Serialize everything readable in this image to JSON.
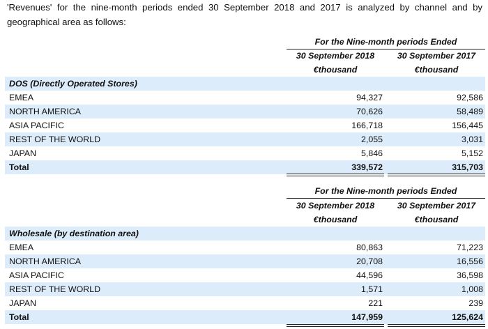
{
  "intro": "'Revenues' for the nine-month periods ended 30 September 2018 and 2017 is analyzed by channel and by geographical area as follows:",
  "sections": [
    {
      "header_title": "For the Nine-month periods Ended",
      "col1_label": "30 September 2018",
      "col2_label": "30 September 2017",
      "unit1": "€thousand",
      "unit2": "€thousand",
      "title": "DOS (Directly Operated Stores)",
      "rows": [
        {
          "label": "EMEA",
          "v2018": "94,327",
          "v2017": "92,586"
        },
        {
          "label": "NORTH AMERICA",
          "v2018": "70,626",
          "v2017": "58,489"
        },
        {
          "label": "ASIA PACIFIC",
          "v2018": "166,718",
          "v2017": "156,445"
        },
        {
          "label": "REST OF THE WORLD",
          "v2018": "2,055",
          "v2017": "3,031"
        },
        {
          "label": "JAPAN",
          "v2018": "5,846",
          "v2017": "5,152"
        }
      ],
      "total": {
        "label": "Total",
        "v2018": "339,572",
        "v2017": "315,703"
      }
    },
    {
      "header_title": "For the Nine-month periods Ended",
      "col1_label": "30 September 2018",
      "col2_label": "30 September 2017",
      "unit1": "€thousand",
      "unit2": "€thousand",
      "title": "Wholesale (by destination area)",
      "rows": [
        {
          "label": "EMEA",
          "v2018": "80,863",
          "v2017": "71,223"
        },
        {
          "label": "NORTH AMERICA",
          "v2018": "20,708",
          "v2017": "16,556"
        },
        {
          "label": "ASIA PACIFIC",
          "v2018": "44,596",
          "v2017": "36,598"
        },
        {
          "label": "REST OF THE WORLD",
          "v2018": "1,571",
          "v2017": "1,008"
        },
        {
          "label": "JAPAN",
          "v2018": "221",
          "v2017": "239"
        }
      ],
      "total": {
        "label": "Total",
        "v2018": "147,959",
        "v2017": "125,624"
      }
    }
  ]
}
